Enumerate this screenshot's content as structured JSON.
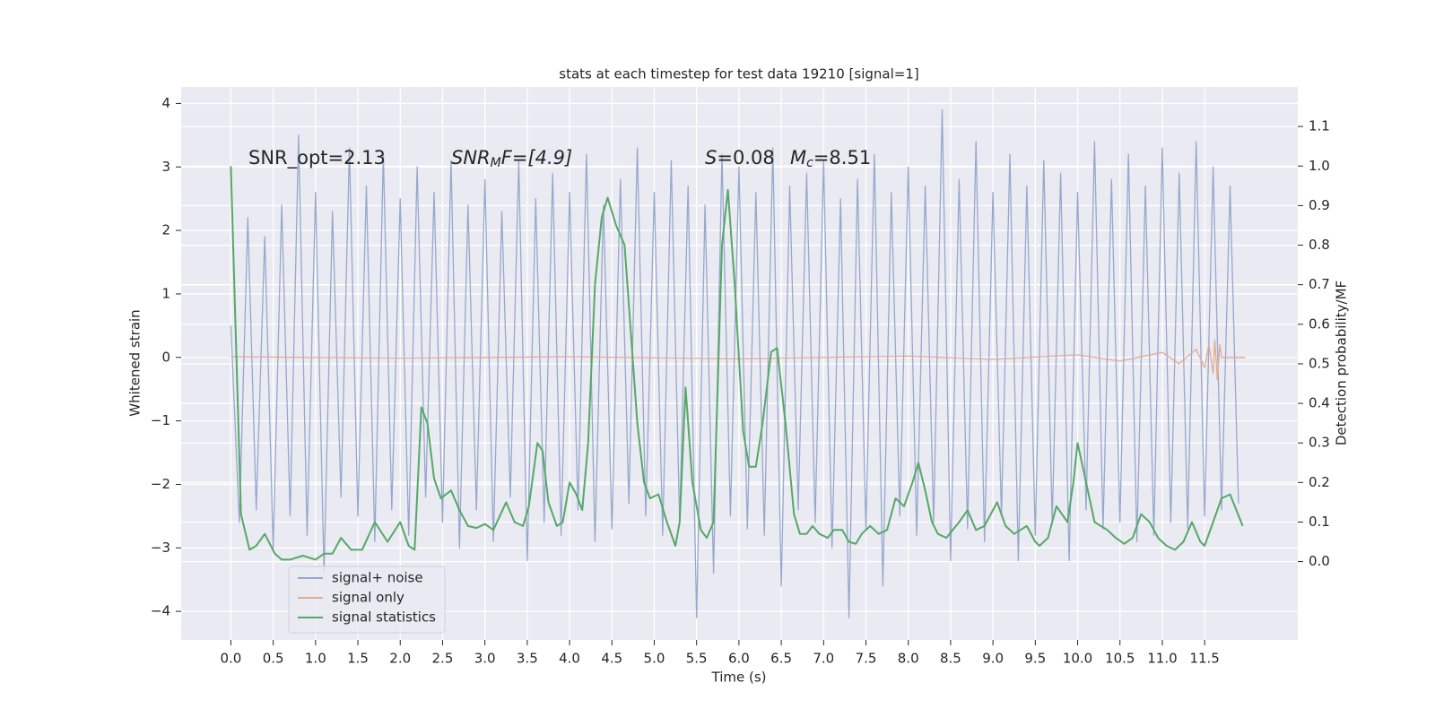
{
  "chart_data": {
    "type": "line",
    "title": "stats at each timestep for test data 19210 [signal=1]",
    "xlabel": "Time (s)",
    "ylabel": "Whitened strain",
    "y2label": "Detection probability/MF",
    "annotations": [
      [
        "SNR_opt=2.13"
      ],
      [
        "SNR",
        "M",
        "F=[4.9]"
      ],
      [
        "S",
        "=0.08"
      ],
      [
        "M",
        "c",
        "=8.51"
      ]
    ],
    "xlim": [
      -0.587,
      12.6
    ],
    "ylim": [
      -4.45,
      4.26
    ],
    "y2lim": [
      -0.198,
      1.2
    ],
    "xticks": [
      {
        "value": 0,
        "label": "0.0"
      },
      0.5,
      {
        "value": 1,
        "label": "1.0"
      },
      1.5,
      {
        "value": 2,
        "label": "2.0"
      },
      2.5,
      {
        "value": 3,
        "label": "3.0"
      },
      3.5,
      {
        "value": 4,
        "label": "4.0"
      },
      4.5,
      {
        "value": 5,
        "label": "5.0"
      },
      5.5,
      {
        "value": 6,
        "label": "6.0"
      },
      6.5,
      {
        "value": 7,
        "label": "7.0"
      },
      7.5,
      {
        "value": 8,
        "label": "8.0"
      },
      8.5,
      {
        "value": 9,
        "label": "9.0"
      },
      9.5,
      {
        "value": 10,
        "label": "10.0"
      },
      10.5,
      {
        "value": 11,
        "label": "11.0"
      },
      11.5
    ],
    "yticks": [
      {
        "value": -4,
        "label": "−4"
      },
      {
        "value": -3,
        "label": "−3"
      },
      {
        "value": -2,
        "label": "−2"
      },
      {
        "value": -1,
        "label": "−1"
      },
      0,
      1,
      2,
      3,
      4
    ],
    "y2ticks": [
      {
        "value": 0,
        "label": "0.0"
      },
      0.1,
      0.2,
      0.3,
      0.4,
      0.5,
      0.6,
      0.7,
      0.8,
      0.9,
      {
        "value": 1,
        "label": "1.0"
      },
      1.1
    ],
    "grid": true,
    "legend": "lower left",
    "series": [
      {
        "name": "signal+ noise",
        "color": "#97a8cc",
        "x": [
          0.0,
          0.1,
          0.2,
          0.3,
          0.4,
          0.5,
          0.6,
          0.7,
          0.8,
          0.9,
          1.0,
          1.1,
          1.2,
          1.3,
          1.4,
          1.5,
          1.6,
          1.7,
          1.8,
          1.9,
          2.0,
          2.1,
          2.2,
          2.3,
          2.4,
          2.5,
          2.6,
          2.7,
          2.8,
          2.9,
          3.0,
          3.1,
          3.2,
          3.3,
          3.4,
          3.5,
          3.6,
          3.7,
          3.8,
          3.9,
          4.0,
          4.1,
          4.2,
          4.3,
          4.4,
          4.5,
          4.6,
          4.7,
          4.8,
          4.9,
          5.0,
          5.1,
          5.2,
          5.3,
          5.4,
          5.5,
          5.6,
          5.7,
          5.8,
          5.9,
          6.0,
          6.1,
          6.2,
          6.3,
          6.4,
          6.5,
          6.6,
          6.7,
          6.8,
          6.9,
          7.0,
          7.1,
          7.2,
          7.3,
          7.4,
          7.5,
          7.6,
          7.7,
          7.8,
          7.9,
          8.0,
          8.1,
          8.2,
          8.3,
          8.4,
          8.5,
          8.6,
          8.7,
          8.8,
          8.9,
          9.0,
          9.1,
          9.2,
          9.3,
          9.4,
          9.5,
          9.6,
          9.7,
          9.8,
          9.9,
          10.0,
          10.1,
          10.2,
          10.3,
          10.4,
          10.5,
          10.6,
          10.7,
          10.8,
          10.9,
          11.0,
          11.1,
          11.2,
          11.3,
          11.4,
          11.5,
          11.6,
          11.7,
          11.8,
          11.9
        ],
        "values": [
          0.5,
          -2.6,
          2.2,
          -2.4,
          1.9,
          -3.0,
          2.4,
          -2.5,
          3.5,
          -2.8,
          2.6,
          -3.4,
          2.3,
          -2.2,
          3.3,
          -2.5,
          2.7,
          -2.9,
          3.2,
          -2.4,
          2.5,
          -2.8,
          3.0,
          -2.2,
          2.6,
          -2.6,
          3.1,
          -3.0,
          2.4,
          -2.4,
          2.8,
          -2.9,
          2.3,
          -2.2,
          3.1,
          -3.2,
          2.5,
          -2.6,
          2.9,
          -2.8,
          2.6,
          -2.4,
          3.2,
          -2.9,
          2.4,
          -2.7,
          2.8,
          -2.3,
          3.3,
          -2.5,
          2.6,
          -2.8,
          3.1,
          -2.6,
          2.7,
          -4.1,
          2.4,
          -3.4,
          3.2,
          -2.5,
          3.0,
          -2.7,
          2.6,
          -2.8,
          3.3,
          -3.6,
          2.7,
          -2.4,
          2.9,
          -2.6,
          3.1,
          -3.0,
          2.5,
          -4.1,
          2.8,
          -2.7,
          3.2,
          -3.6,
          2.6,
          -2.5,
          3.0,
          -2.8,
          2.7,
          -2.6,
          3.9,
          -3.2,
          2.8,
          -2.7,
          3.4,
          -2.9,
          2.6,
          -2.5,
          3.2,
          -3.2,
          2.7,
          -2.8,
          3.1,
          -2.6,
          2.9,
          -3.2,
          2.6,
          -2.4,
          3.4,
          -2.7,
          2.8,
          -2.6,
          3.2,
          -2.9,
          2.7,
          -2.8,
          3.3,
          -2.6,
          2.9,
          -2.7,
          3.4,
          -2.5,
          3.0,
          -2.4,
          2.7,
          -2.3
        ]
      },
      {
        "name": "signal only",
        "color": "#e3aa93",
        "x": [
          0,
          2,
          4,
          6,
          8,
          9,
          10,
          10.5,
          11,
          11.2,
          11.4,
          11.5,
          11.55,
          11.6,
          11.62,
          11.65,
          11.68,
          11.7,
          11.8,
          11.98
        ],
        "values": [
          0.01,
          -0.01,
          0.01,
          -0.02,
          0.02,
          -0.03,
          0.04,
          -0.06,
          0.08,
          -0.1,
          0.13,
          -0.16,
          0.2,
          -0.25,
          0.28,
          -0.35,
          0.2,
          0,
          0,
          0
        ]
      },
      {
        "name": "signal statistics",
        "color": "#55a868",
        "axis": "y2",
        "x": [
          0,
          0.12,
          0.22,
          0.3,
          0.4,
          0.52,
          0.6,
          0.7,
          0.85,
          1.0,
          1.1,
          1.2,
          1.3,
          1.42,
          1.55,
          1.7,
          1.85,
          2.0,
          2.1,
          2.17,
          2.25,
          2.32,
          2.4,
          2.48,
          2.6,
          2.7,
          2.8,
          2.9,
          3.0,
          3.1,
          3.25,
          3.35,
          3.45,
          3.52,
          3.62,
          3.68,
          3.75,
          3.85,
          3.92,
          4.0,
          4.08,
          4.15,
          4.22,
          4.3,
          4.38,
          4.45,
          4.55,
          4.65,
          4.8,
          4.88,
          4.95,
          5.05,
          5.15,
          5.25,
          5.3,
          5.37,
          5.45,
          5.55,
          5.62,
          5.7,
          5.8,
          5.87,
          5.95,
          6.05,
          6.12,
          6.2,
          6.28,
          6.38,
          6.45,
          6.55,
          6.65,
          6.72,
          6.8,
          6.87,
          6.95,
          7.05,
          7.12,
          7.22,
          7.3,
          7.38,
          7.45,
          7.55,
          7.65,
          7.75,
          7.85,
          7.95,
          8.05,
          8.12,
          8.2,
          8.28,
          8.35,
          8.45,
          8.6,
          8.7,
          8.8,
          8.9,
          9.05,
          9.15,
          9.25,
          9.4,
          9.5,
          9.55,
          9.65,
          9.75,
          9.88,
          9.95,
          10.0,
          10.1,
          10.2,
          10.35,
          10.45,
          10.55,
          10.65,
          10.75,
          10.85,
          10.95,
          11.05,
          11.15,
          11.25,
          11.35,
          11.45,
          11.5,
          11.6,
          11.7,
          11.8,
          11.95
        ],
        "values": [
          1.0,
          0.12,
          0.03,
          0.04,
          0.07,
          0.02,
          0.005,
          0.005,
          0.015,
          0.005,
          0.02,
          0.02,
          0.06,
          0.03,
          0.03,
          0.1,
          0.05,
          0.1,
          0.04,
          0.03,
          0.39,
          0.35,
          0.21,
          0.16,
          0.18,
          0.13,
          0.09,
          0.085,
          0.095,
          0.08,
          0.15,
          0.1,
          0.09,
          0.14,
          0.3,
          0.28,
          0.15,
          0.09,
          0.1,
          0.2,
          0.17,
          0.13,
          0.3,
          0.7,
          0.87,
          0.92,
          0.85,
          0.8,
          0.35,
          0.2,
          0.16,
          0.17,
          0.1,
          0.04,
          0.1,
          0.44,
          0.2,
          0.08,
          0.06,
          0.1,
          0.8,
          0.94,
          0.7,
          0.33,
          0.24,
          0.24,
          0.35,
          0.53,
          0.54,
          0.35,
          0.12,
          0.07,
          0.07,
          0.09,
          0.07,
          0.06,
          0.08,
          0.08,
          0.05,
          0.045,
          0.07,
          0.09,
          0.07,
          0.08,
          0.16,
          0.14,
          0.2,
          0.25,
          0.18,
          0.1,
          0.07,
          0.06,
          0.1,
          0.13,
          0.08,
          0.09,
          0.15,
          0.09,
          0.07,
          0.09,
          0.05,
          0.04,
          0.06,
          0.14,
          0.1,
          0.2,
          0.3,
          0.2,
          0.1,
          0.08,
          0.06,
          0.045,
          0.06,
          0.12,
          0.1,
          0.06,
          0.04,
          0.03,
          0.05,
          0.1,
          0.05,
          0.04,
          0.1,
          0.16,
          0.17,
          0.09
        ]
      }
    ]
  }
}
